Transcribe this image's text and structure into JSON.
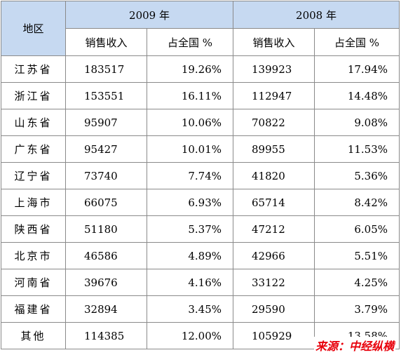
{
  "header": {
    "region_label": "地区",
    "year_2009": "2009 年",
    "year_2008": "2008 年",
    "sales_label": "销售收入",
    "share_label": "占全国  %"
  },
  "rows": [
    {
      "region": "江苏省",
      "sales_2009": "183517",
      "share_2009": "19.26%",
      "sales_2008": "139923",
      "share_2008": "17.94%"
    },
    {
      "region": "浙江省",
      "sales_2009": "153551",
      "share_2009": "16.11%",
      "sales_2008": "112947",
      "share_2008": "14.48%"
    },
    {
      "region": "山东省",
      "sales_2009": "95907",
      "share_2009": "10.06%",
      "sales_2008": "70822",
      "share_2008": "9.08%"
    },
    {
      "region": "广东省",
      "sales_2009": "95427",
      "share_2009": "10.01%",
      "sales_2008": "89955",
      "share_2008": "11.53%"
    },
    {
      "region": "辽宁省",
      "sales_2009": "73740",
      "share_2009": "7.74%",
      "sales_2008": "41820",
      "share_2008": "5.36%"
    },
    {
      "region": "上海市",
      "sales_2009": "66075",
      "share_2009": "6.93%",
      "sales_2008": "65714",
      "share_2008": "8.42%"
    },
    {
      "region": "陕西省",
      "sales_2009": "51180",
      "share_2009": "5.37%",
      "sales_2008": "47212",
      "share_2008": "6.05%"
    },
    {
      "region": "北京市",
      "sales_2009": "46586",
      "share_2009": "4.89%",
      "sales_2008": "42966",
      "share_2008": "5.51%"
    },
    {
      "region": "河南省",
      "sales_2009": "39676",
      "share_2009": "4.16%",
      "sales_2008": "33122",
      "share_2008": "4.25%"
    },
    {
      "region": "福建省",
      "sales_2009": "32894",
      "share_2009": "3.45%",
      "sales_2008": "29590",
      "share_2008": "3.79%"
    },
    {
      "region": "其他",
      "sales_2009": "114385",
      "share_2009": "12.00%",
      "sales_2008": "105929",
      "share_2008": "13.58%"
    }
  ],
  "watermark": "来源：中经纵横"
}
